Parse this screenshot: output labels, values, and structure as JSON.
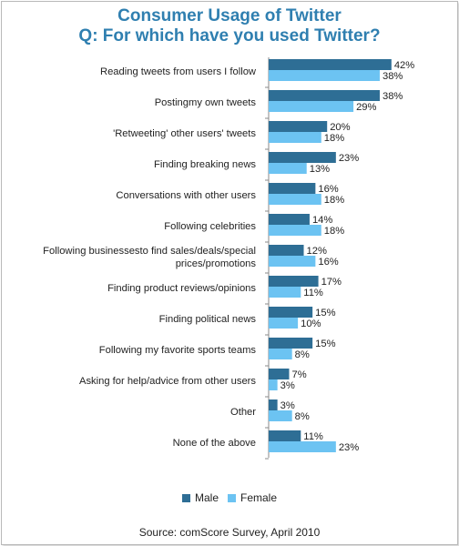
{
  "title_line1": "Consumer Usage of Twitter",
  "title_line2": "Q: For which have you used Twitter?",
  "source": "Source: comScore Survey, April 2010",
  "colors": {
    "male": "#2e6e95",
    "female": "#6cc3f2"
  },
  "chart_data": {
    "type": "bar",
    "orientation": "horizontal",
    "title": "Consumer Usage of Twitter",
    "subtitle": "Q: For which have you used Twitter?",
    "legend_position": "bottom",
    "xlim": [
      0,
      45
    ],
    "grid": false,
    "categories": [
      [
        "Reading tweets from users I follow"
      ],
      [
        "Postingmy own tweets"
      ],
      [
        "'Retweeting' other users' tweets"
      ],
      [
        "Finding breaking news"
      ],
      [
        "Conversations with other users"
      ],
      [
        "Following celebrities"
      ],
      [
        "Following businessesto find sales/deals/special",
        "prices/promotions"
      ],
      [
        "Finding product reviews/opinions"
      ],
      [
        "Finding political news"
      ],
      [
        "Following my favorite sports teams"
      ],
      [
        "Asking for help/advice from other users"
      ],
      [
        "Other"
      ],
      [
        "None of the above"
      ]
    ],
    "series": [
      {
        "name": "Male",
        "values": [
          42,
          38,
          20,
          23,
          16,
          14,
          12,
          17,
          15,
          15,
          7,
          3,
          11
        ]
      },
      {
        "name": "Female",
        "values": [
          38,
          29,
          18,
          13,
          18,
          18,
          16,
          11,
          10,
          8,
          3,
          8,
          23
        ]
      }
    ]
  }
}
